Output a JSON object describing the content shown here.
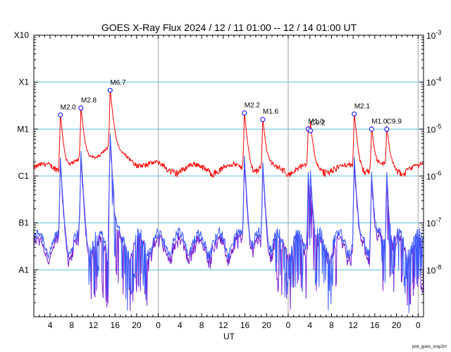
{
  "chart_data": {
    "type": "line",
    "title": "GOES X-Ray Flux   2024 / 12 / 11   01:00 -- 12 / 14   01:00   UT",
    "xlabel": "UT",
    "credit": "plot_goes_xray2m",
    "x_range_hours": [
      0,
      72
    ],
    "x_tick_labels": [
      "4",
      "8",
      "12",
      "16",
      "20",
      "0",
      "4",
      "8",
      "12",
      "16",
      "20",
      "0",
      "4",
      "8",
      "12",
      "16",
      "20",
      "0"
    ],
    "day_boundaries_hours": [
      23,
      47,
      71
    ],
    "y_scale": "log",
    "ylim": [
      1e-09,
      0.001
    ],
    "y_left_ticks": [
      {
        "value": 0.001,
        "label": "X10"
      },
      {
        "value": 0.0001,
        "label": "X1"
      },
      {
        "value": 1e-05,
        "label": "M1"
      },
      {
        "value": 1e-06,
        "label": "C1"
      },
      {
        "value": 1e-07,
        "label": "B1"
      },
      {
        "value": 1e-08,
        "label": "A1"
      }
    ],
    "y_right_ticks": [
      {
        "value": 0.001,
        "mant": "10",
        "exp": "-3"
      },
      {
        "value": 0.0001,
        "mant": "10",
        "exp": "-4"
      },
      {
        "value": 1e-05,
        "mant": "10",
        "exp": "-5"
      },
      {
        "value": 1e-06,
        "mant": "10",
        "exp": "-6"
      },
      {
        "value": 1e-07,
        "mant": "10",
        "exp": "-7"
      },
      {
        "value": 1e-08,
        "mant": "10",
        "exp": "-8"
      }
    ],
    "grid_levels": [
      0.0001,
      1e-05,
      1e-06,
      1e-07,
      1e-08
    ],
    "colors": {
      "long": "#ff0000",
      "short": "#3b5bff",
      "short2": "#7a1fd0",
      "grid": "#5bc0e0",
      "day": "#a0a0a0",
      "marker": "#0000ff"
    },
    "flares": [
      {
        "t": 4.9,
        "value": 2e-05,
        "label": "M2.0"
      },
      {
        "t": 8.7,
        "value": 2.8e-05,
        "label": "M2.8"
      },
      {
        "t": 14.1,
        "value": 6.7e-05,
        "label": "M6.7"
      },
      {
        "t": 38.9,
        "value": 2.2e-05,
        "label": "M2.2"
      },
      {
        "t": 42.3,
        "value": 1.6e-05,
        "label": "M1.6"
      },
      {
        "t": 50.7,
        "value": 1e-05,
        "label": "M1.0"
      },
      {
        "t": 51.1,
        "value": 9.2e-06,
        "label": "C9.2"
      },
      {
        "t": 59.2,
        "value": 2.1e-05,
        "label": "M2.1"
      },
      {
        "t": 62.4,
        "value": 1e-05,
        "label": "M1.0"
      },
      {
        "t": 65.2,
        "value": 9.9e-06,
        "label": "C9.9"
      }
    ]
  }
}
